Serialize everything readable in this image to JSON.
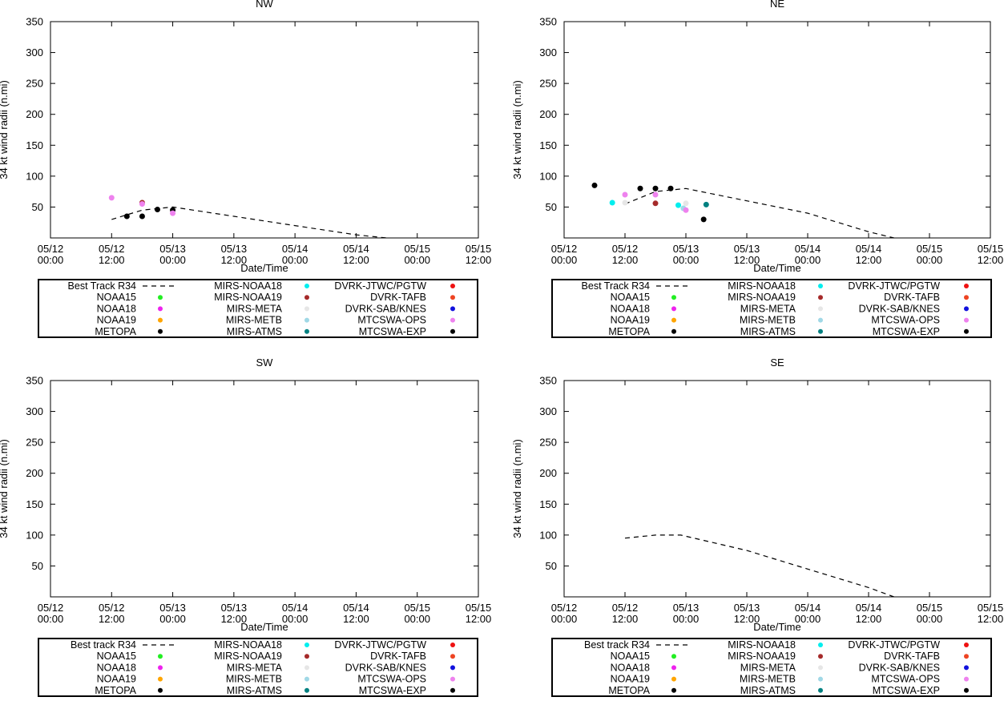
{
  "legend_colors": {
    "best_track": "#000000",
    "NOAA15": "#22ee22",
    "NOAA18": "#ee22ee",
    "NOAA19": "#ffa500",
    "METOPA": "#000000",
    "MIRS-NOAA18": "#00eeee",
    "MIRS-NOAA19": "#a52a2a",
    "MIRS-META": "#e6e6e6",
    "MIRS-METB": "#a0d8e6",
    "MIRS-ATMS": "#008080",
    "DVRK-JTWC/PGTW": "#ee1111",
    "DVRK-TAFB": "#ee4422",
    "DVRK-SAB/KNES": "#1111dd",
    "MTCSWA-OPS": "#ee82ee",
    "MTCSWA-EXP": "#000000"
  },
  "chart_data": [
    {
      "title": "NW",
      "type": "line",
      "xlabel": "Date/Time",
      "ylabel": "34 kt wind radii (n.mi)",
      "ylim": [
        0,
        350
      ],
      "yticks": [
        "50",
        "100",
        "150",
        "200",
        "250",
        "300",
        "350"
      ],
      "ytick_values": [
        50,
        100,
        150,
        200,
        250,
        300,
        350
      ],
      "xlim": [
        0,
        84
      ],
      "xticks": [
        {
          "x": 0,
          "l1": "05/12",
          "l2": "00:00"
        },
        {
          "x": 12,
          "l1": "05/12",
          "l2": "12:00"
        },
        {
          "x": 24,
          "l1": "05/13",
          "l2": "00:00"
        },
        {
          "x": 36,
          "l1": "05/13",
          "l2": "12:00"
        },
        {
          "x": 48,
          "l1": "05/14",
          "l2": "00:00"
        },
        {
          "x": 60,
          "l1": "05/14",
          "l2": "12:00"
        },
        {
          "x": 72,
          "l1": "05/15",
          "l2": "00:00"
        },
        {
          "x": 84,
          "l1": "05/15",
          "l2": "12:00"
        }
      ],
      "best_track": [
        [
          12,
          30
        ],
        [
          18,
          45
        ],
        [
          24,
          50
        ],
        [
          36,
          35
        ],
        [
          48,
          20
        ],
        [
          60,
          5
        ],
        [
          66,
          0
        ]
      ],
      "points": [
        {
          "x": 12,
          "y": 65,
          "series": "MTCSWA-OPS"
        },
        {
          "x": 15,
          "y": 35,
          "series": "METOPA"
        },
        {
          "x": 18,
          "y": 57,
          "series": "MIRS-NOAA19"
        },
        {
          "x": 18,
          "y": 55,
          "series": "MTCSWA-OPS"
        },
        {
          "x": 18,
          "y": 35,
          "series": "METOPA"
        },
        {
          "x": 21,
          "y": 46,
          "series": "METOPA"
        },
        {
          "x": 24,
          "y": 45,
          "series": "METOPA"
        },
        {
          "x": 24,
          "y": 40,
          "series": "MTCSWA-OPS"
        }
      ],
      "legend": {
        "col1": [
          "Best Track R34",
          "NOAA15",
          "NOAA18",
          "NOAA19",
          "METOPA"
        ],
        "col2": [
          "MIRS-NOAA18",
          "MIRS-NOAA19",
          "MIRS-META",
          "MIRS-METB",
          "MIRS-ATMS"
        ],
        "col3": [
          "DVRK-JTWC/PGTW",
          "DVRK-TAFB",
          "DVRK-SAB/KNES",
          "MTCSWA-OPS",
          "MTCSWA-EXP"
        ]
      }
    },
    {
      "title": "NE",
      "type": "line",
      "xlabel": "Date/Time",
      "ylabel": "34 kt wind radii (n.mi)",
      "ylim": [
        0,
        350
      ],
      "yticks": [
        "50",
        "100",
        "150",
        "200",
        "250",
        "300",
        "350"
      ],
      "ytick_values": [
        50,
        100,
        150,
        200,
        250,
        300,
        350
      ],
      "xlim": [
        0,
        84
      ],
      "xticks": [
        {
          "x": 0,
          "l1": "05/12",
          "l2": "00:00"
        },
        {
          "x": 12,
          "l1": "05/12",
          "l2": "12:00"
        },
        {
          "x": 24,
          "l1": "05/13",
          "l2": "00:00"
        },
        {
          "x": 36,
          "l1": "05/13",
          "l2": "12:00"
        },
        {
          "x": 48,
          "l1": "05/14",
          "l2": "00:00"
        },
        {
          "x": 60,
          "l1": "05/14",
          "l2": "12:00"
        },
        {
          "x": 72,
          "l1": "05/15",
          "l2": "00:00"
        },
        {
          "x": 84,
          "l1": "05/15",
          "l2": "12:00"
        }
      ],
      "best_track": [
        [
          12,
          55
        ],
        [
          18,
          75
        ],
        [
          24,
          80
        ],
        [
          36,
          60
        ],
        [
          48,
          40
        ],
        [
          60,
          10
        ],
        [
          65,
          0
        ]
      ],
      "points": [
        {
          "x": 6,
          "y": 85,
          "series": "METOPA"
        },
        {
          "x": 9.5,
          "y": 57,
          "series": "MIRS-NOAA18"
        },
        {
          "x": 12,
          "y": 57,
          "series": "MIRS-META"
        },
        {
          "x": 12,
          "y": 70,
          "series": "MTCSWA-OPS"
        },
        {
          "x": 15,
          "y": 80,
          "series": "METOPA"
        },
        {
          "x": 18,
          "y": 80,
          "series": "METOPA"
        },
        {
          "x": 18,
          "y": 70,
          "series": "MTCSWA-OPS"
        },
        {
          "x": 18,
          "y": 56,
          "series": "MIRS-NOAA19"
        },
        {
          "x": 21,
          "y": 80,
          "series": "METOPA"
        },
        {
          "x": 22.5,
          "y": 53,
          "series": "MIRS-NOAA18"
        },
        {
          "x": 24,
          "y": 56,
          "series": "MIRS-META"
        },
        {
          "x": 23.5,
          "y": 48,
          "series": "MIRS-METB"
        },
        {
          "x": 24,
          "y": 45,
          "series": "MTCSWA-OPS"
        },
        {
          "x": 27.5,
          "y": 30,
          "series": "METOPA"
        },
        {
          "x": 28,
          "y": 54,
          "series": "MIRS-ATMS"
        }
      ],
      "legend": {
        "col1": [
          "Best Track R34",
          "NOAA15",
          "NOAA18",
          "NOAA19",
          "METOPA"
        ],
        "col2": [
          "MIRS-NOAA18",
          "MIRS-NOAA19",
          "MIRS-META",
          "MIRS-METB",
          "MIRS-ATMS"
        ],
        "col3": [
          "DVRK-JTWC/PGTW",
          "DVRK-TAFB",
          "DVRK-SAB/KNES",
          "MTCSWA-OPS",
          "MTCSWA-EXP"
        ]
      }
    },
    {
      "title": "SW",
      "type": "line",
      "xlabel": "Date/Time",
      "ylabel": "34 kt wind radii (n.mi)",
      "ylim": [
        0,
        350
      ],
      "yticks": [
        "50",
        "100",
        "150",
        "200",
        "250",
        "300",
        "350"
      ],
      "ytick_values": [
        50,
        100,
        150,
        200,
        250,
        300,
        350
      ],
      "xlim": [
        0,
        84
      ],
      "xticks": [
        {
          "x": 0,
          "l1": "05/12",
          "l2": "00:00"
        },
        {
          "x": 12,
          "l1": "05/12",
          "l2": "12:00"
        },
        {
          "x": 24,
          "l1": "05/13",
          "l2": "00:00"
        },
        {
          "x": 36,
          "l1": "05/13",
          "l2": "12:00"
        },
        {
          "x": 48,
          "l1": "05/14",
          "l2": "00:00"
        },
        {
          "x": 60,
          "l1": "05/14",
          "l2": "12:00"
        },
        {
          "x": 72,
          "l1": "05/15",
          "l2": "00:00"
        },
        {
          "x": 84,
          "l1": "05/15",
          "l2": "12:00"
        }
      ],
      "best_track": [],
      "points": [],
      "legend": {
        "col1": [
          "Best track R34",
          "NOAA15",
          "NOAA18",
          "NOAA19",
          "METOPA"
        ],
        "col2": [
          "MIRS-NOAA18",
          "MIRS-NOAA19",
          "MIRS-META",
          "MIRS-METB",
          "MIRS-ATMS"
        ],
        "col3": [
          "DVRK-JTWC/PGTW",
          "DVRK-TAFB",
          "DVRK-SAB/KNES",
          "MTCSWA-OPS",
          "MTCSWA-EXP"
        ]
      }
    },
    {
      "title": "SE",
      "type": "line",
      "xlabel": "Date/Time",
      "ylabel": "34 kt wind radii (n.mi)",
      "ylim": [
        0,
        350
      ],
      "yticks": [
        "50",
        "100",
        "150",
        "200",
        "250",
        "300",
        "350"
      ],
      "ytick_values": [
        50,
        100,
        150,
        200,
        250,
        300,
        350
      ],
      "xlim": [
        0,
        84
      ],
      "xticks": [
        {
          "x": 0,
          "l1": "05/12",
          "l2": "00:00"
        },
        {
          "x": 12,
          "l1": "05/12",
          "l2": "12:00"
        },
        {
          "x": 24,
          "l1": "05/13",
          "l2": "00:00"
        },
        {
          "x": 36,
          "l1": "05/13",
          "l2": "12:00"
        },
        {
          "x": 48,
          "l1": "05/14",
          "l2": "00:00"
        },
        {
          "x": 60,
          "l1": "05/14",
          "l2": "12:00"
        },
        {
          "x": 72,
          "l1": "05/15",
          "l2": "00:00"
        },
        {
          "x": 84,
          "l1": "05/15",
          "l2": "12:00"
        }
      ],
      "best_track": [
        [
          12,
          95
        ],
        [
          18,
          100
        ],
        [
          23,
          100
        ],
        [
          36,
          75
        ],
        [
          48,
          45
        ],
        [
          60,
          15
        ],
        [
          65,
          0
        ]
      ],
      "points": [],
      "legend": {
        "col1": [
          "Best track R34",
          "NOAA15",
          "NOAA18",
          "NOAA19",
          "METOPA"
        ],
        "col2": [
          "MIRS-NOAA18",
          "MIRS-NOAA19",
          "MIRS-META",
          "MIRS-METB",
          "MIRS-ATMS"
        ],
        "col3": [
          "DVRK-JTWC/PGTW",
          "DVRK-TAFB",
          "DVRK-SAB/KNES",
          "MTCSWA-OPS",
          "MTCSWA-EXP"
        ]
      }
    }
  ]
}
